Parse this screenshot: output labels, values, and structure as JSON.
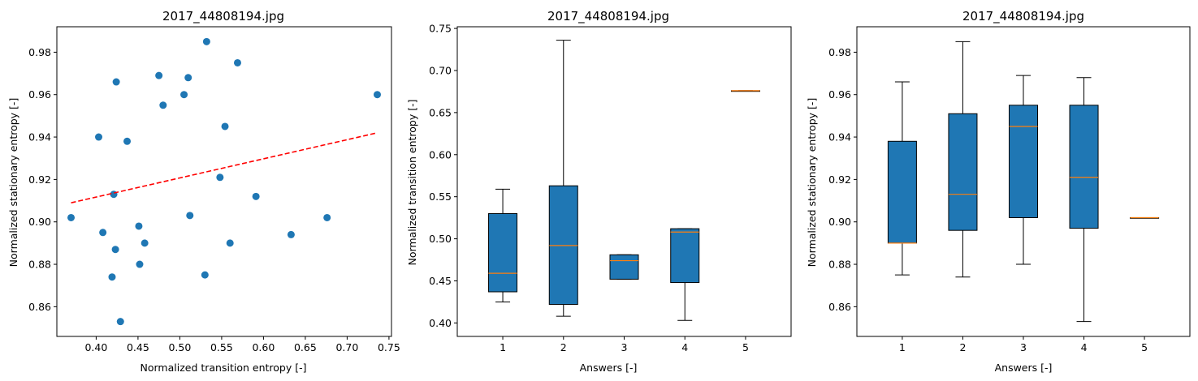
{
  "chart_data": [
    {
      "type": "scatter",
      "title": "2017_44808194.jpg",
      "xlabel": "Normalized transition entropy [-]",
      "ylabel": "Normalized stationary entropy [-]",
      "xlim": [
        0.353,
        0.753
      ],
      "ylim": [
        0.846,
        0.992
      ],
      "xticks": [
        "0.40",
        "0.45",
        "0.50",
        "0.55",
        "0.60",
        "0.65",
        "0.70",
        "0.75"
      ],
      "yticks": [
        "0.86",
        "0.88",
        "0.90",
        "0.92",
        "0.94",
        "0.96",
        "0.98"
      ],
      "point_color": "#1f77b4",
      "points": [
        {
          "x": 0.37,
          "y": 0.902
        },
        {
          "x": 0.403,
          "y": 0.94
        },
        {
          "x": 0.408,
          "y": 0.895
        },
        {
          "x": 0.419,
          "y": 0.874
        },
        {
          "x": 0.421,
          "y": 0.913
        },
        {
          "x": 0.423,
          "y": 0.887
        },
        {
          "x": 0.424,
          "y": 0.966
        },
        {
          "x": 0.429,
          "y": 0.853
        },
        {
          "x": 0.437,
          "y": 0.938
        },
        {
          "x": 0.451,
          "y": 0.898
        },
        {
          "x": 0.452,
          "y": 0.88
        },
        {
          "x": 0.458,
          "y": 0.89
        },
        {
          "x": 0.475,
          "y": 0.969
        },
        {
          "x": 0.48,
          "y": 0.955
        },
        {
          "x": 0.505,
          "y": 0.96
        },
        {
          "x": 0.51,
          "y": 0.968
        },
        {
          "x": 0.512,
          "y": 0.903
        },
        {
          "x": 0.53,
          "y": 0.875
        },
        {
          "x": 0.532,
          "y": 0.985
        },
        {
          "x": 0.548,
          "y": 0.921
        },
        {
          "x": 0.554,
          "y": 0.945
        },
        {
          "x": 0.56,
          "y": 0.89
        },
        {
          "x": 0.569,
          "y": 0.975
        },
        {
          "x": 0.591,
          "y": 0.912
        },
        {
          "x": 0.633,
          "y": 0.894
        },
        {
          "x": 0.676,
          "y": 0.902
        },
        {
          "x": 0.736,
          "y": 0.96
        }
      ],
      "trendline": {
        "color": "#ff0000",
        "style": "dashed",
        "from": {
          "x": 0.37,
          "y": 0.909
        },
        "to": {
          "x": 0.736,
          "y": 0.942
        }
      }
    },
    {
      "type": "box",
      "title": "2017_44808194.jpg",
      "xlabel": "Answers [-]",
      "ylabel": "Normalized transition entropy [-]",
      "ylim": [
        0.384,
        0.752
      ],
      "categories": [
        "1",
        "2",
        "3",
        "4",
        "5"
      ],
      "yticks": [
        "0.40",
        "0.45",
        "0.50",
        "0.55",
        "0.60",
        "0.65",
        "0.70",
        "0.75"
      ],
      "box_color": "#1f77b4",
      "median_color": "#ff7f0e",
      "boxes": [
        {
          "whislo": 0.425,
          "q1": 0.437,
          "med": 0.459,
          "q3": 0.53,
          "whishi": 0.559
        },
        {
          "whislo": 0.408,
          "q1": 0.422,
          "med": 0.492,
          "q3": 0.563,
          "whishi": 0.736
        },
        {
          "whislo": 0.452,
          "q1": 0.452,
          "med": 0.474,
          "q3": 0.481,
          "whishi": 0.481
        },
        {
          "whislo": 0.403,
          "q1": 0.448,
          "med": 0.508,
          "q3": 0.512,
          "whishi": 0.512
        },
        {
          "whislo": 0.676,
          "q1": 0.676,
          "med": 0.676,
          "q3": 0.676,
          "whishi": 0.676
        }
      ]
    },
    {
      "type": "box",
      "title": "2017_44808194.jpg",
      "xlabel": "Answers [-]",
      "ylabel": "Normalized stationary entropy [-]",
      "ylim": [
        0.846,
        0.992
      ],
      "categories": [
        "1",
        "2",
        "3",
        "4",
        "5"
      ],
      "yticks": [
        "0.86",
        "0.88",
        "0.90",
        "0.92",
        "0.94",
        "0.96",
        "0.98"
      ],
      "box_color": "#1f77b4",
      "median_color": "#ff7f0e",
      "boxes": [
        {
          "whislo": 0.875,
          "q1": 0.89,
          "med": 0.89,
          "q3": 0.938,
          "whishi": 0.966
        },
        {
          "whislo": 0.874,
          "q1": 0.896,
          "med": 0.913,
          "q3": 0.951,
          "whishi": 0.985
        },
        {
          "whislo": 0.88,
          "q1": 0.902,
          "med": 0.945,
          "q3": 0.955,
          "whishi": 0.969
        },
        {
          "whislo": 0.853,
          "q1": 0.897,
          "med": 0.921,
          "q3": 0.955,
          "whishi": 0.968
        },
        {
          "whislo": 0.902,
          "q1": 0.902,
          "med": 0.902,
          "q3": 0.902,
          "whishi": 0.902
        }
      ]
    }
  ]
}
